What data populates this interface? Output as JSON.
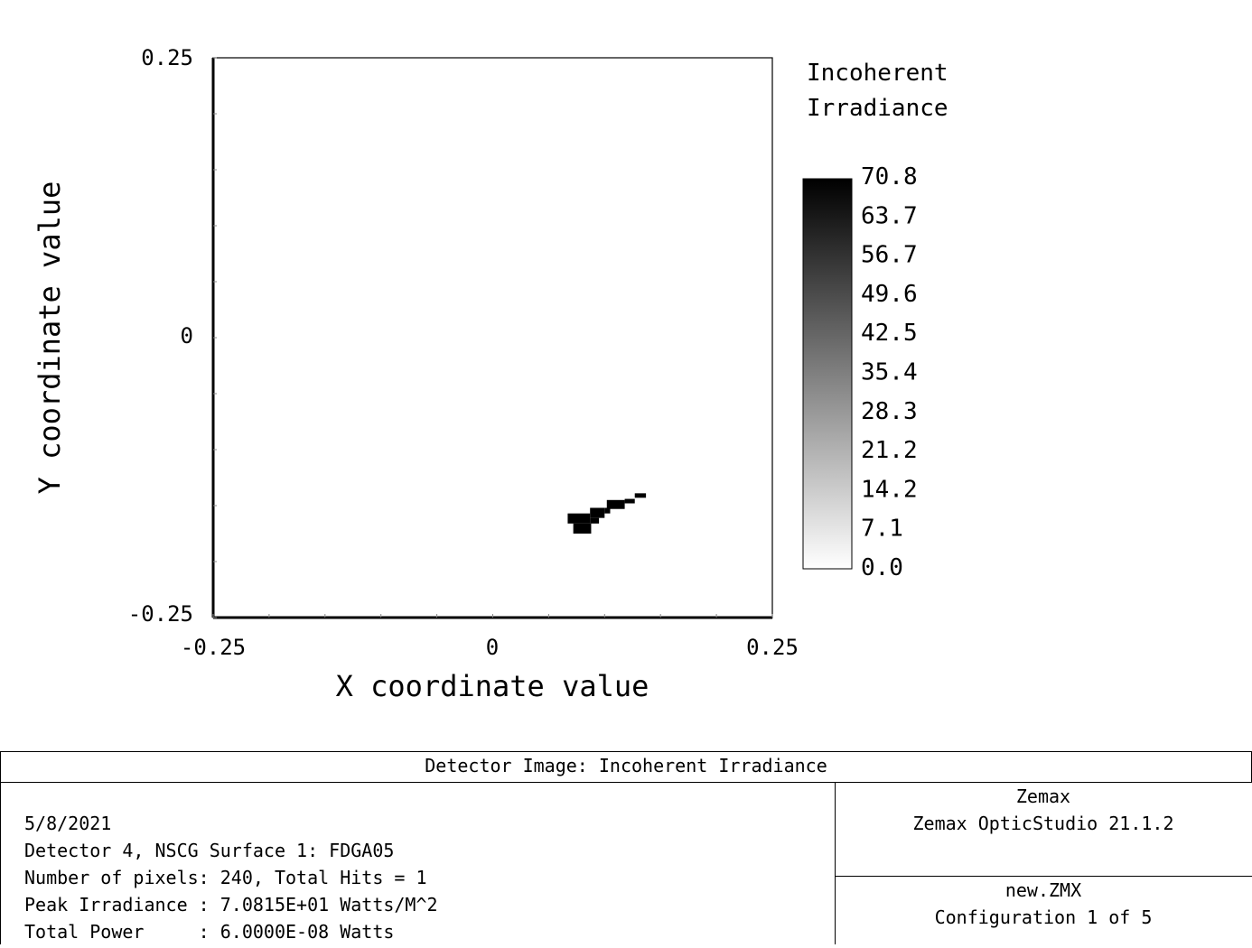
{
  "chart_data": {
    "type": "heatmap",
    "xlabel": "X coordinate value",
    "ylabel": "Y coordinate value",
    "xlim": [
      -0.25,
      0.25
    ],
    "ylim": [
      -0.25,
      0.25
    ],
    "x_ticks": [
      "-0.25",
      "0",
      "0.25"
    ],
    "y_ticks": [
      "0.25",
      "0",
      "-0.25"
    ],
    "colorbar": {
      "title_lines": [
        "Incoherent",
        "Irradiance"
      ],
      "range": [
        0.0,
        70.8
      ],
      "tick_labels": [
        "70.8",
        "63.7",
        "56.7",
        "49.6",
        "42.5",
        "35.4",
        "28.3",
        "21.2",
        "14.2",
        "7.1",
        "0.0"
      ],
      "colormap": "white-to-black"
    },
    "hits": [
      {
        "x0": 0.067,
        "x1": 0.087,
        "y0": -0.166,
        "y1": -0.157,
        "value": 70.8
      },
      {
        "x0": 0.072,
        "x1": 0.088,
        "y0": -0.175,
        "y1": -0.166,
        "value": 70.8
      },
      {
        "x0": 0.087,
        "x1": 0.1,
        "y0": -0.161,
        "y1": -0.152,
        "value": 70.8
      },
      {
        "x0": 0.087,
        "x1": 0.095,
        "y0": -0.166,
        "y1": -0.161,
        "value": 70.8
      },
      {
        "x0": 0.1,
        "x1": 0.105,
        "y0": -0.157,
        "y1": -0.152,
        "value": 70.8
      },
      {
        "x0": 0.102,
        "x1": 0.118,
        "y0": -0.153,
        "y1": -0.145,
        "value": 70.8
      },
      {
        "x0": 0.118,
        "x1": 0.127,
        "y0": -0.148,
        "y1": -0.144,
        "value": 70.8
      },
      {
        "x0": 0.127,
        "x1": 0.137,
        "y0": -0.143,
        "y1": -0.139,
        "value": 70.8
      }
    ]
  },
  "footer": {
    "title": "Detector Image: Incoherent Irradiance",
    "info_lines": [
      "5/8/2021",
      "Detector 4, NSCG Surface 1: FDGA05",
      "Number of pixels: 240, Total Hits = 1",
      "Peak Irradiance : 7.0815E+01 Watts/M^2",
      "Total Power     : 6.0000E-08 Watts"
    ],
    "company": "Zemax",
    "software": "Zemax OpticStudio 21.1.2",
    "file": "new.ZMX",
    "configuration": "Configuration 1 of 5"
  }
}
